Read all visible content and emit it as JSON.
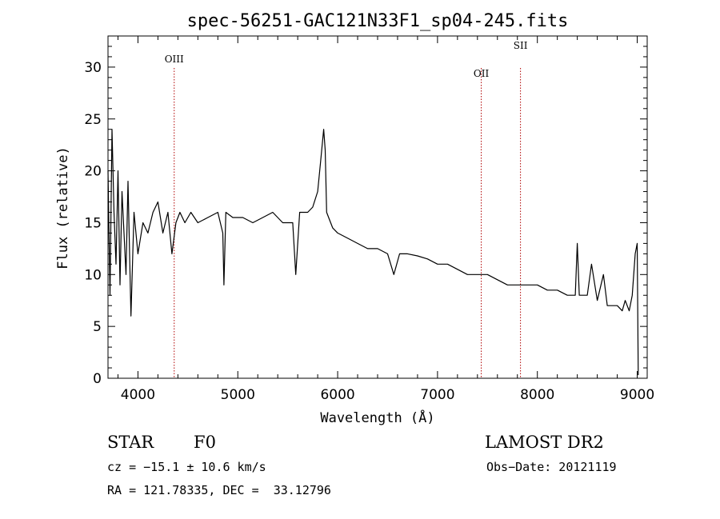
{
  "chart_data": {
    "type": "line",
    "title": "spec-56251-GAC121N33F1_sp04-245.fits",
    "xlabel": "Wavelength (Å)",
    "ylabel": "Flux (relative)",
    "xlim": [
      3700,
      9100
    ],
    "ylim": [
      0,
      33
    ],
    "xticks": [
      4000,
      5000,
      6000,
      7000,
      8000,
      9000
    ],
    "yticks": [
      0,
      5,
      10,
      15,
      20,
      25,
      30
    ],
    "grid": false,
    "series": [
      {
        "x": [
          3700,
          3720,
          3740,
          3760,
          3780,
          3800,
          3820,
          3840,
          3860,
          3880,
          3900,
          3930,
          3960,
          4000,
          4050,
          4100,
          4150,
          4200,
          4250,
          4300,
          4340,
          4380,
          4420,
          4470,
          4530,
          4600,
          4700,
          4800,
          4850,
          4861,
          4880,
          4950,
          5050,
          5150,
          5250,
          5350,
          5450,
          5550,
          5580,
          5620,
          5700,
          5750,
          5800,
          5830,
          5860,
          5875,
          5890,
          5910,
          5950,
          6000,
          6100,
          6200,
          6300,
          6400,
          6500,
          6563,
          6620,
          6700,
          6800,
          6900,
          7000,
          7100,
          7200,
          7300,
          7400,
          7500,
          7600,
          7700,
          7800,
          7900,
          8000,
          8100,
          8200,
          8300,
          8380,
          8400,
          8420,
          8500,
          8542,
          8600,
          8662,
          8700,
          8750,
          8800,
          8850,
          8880,
          8920,
          8950,
          8980,
          9000,
          9010
        ],
        "y": [
          20,
          8,
          24,
          16,
          11,
          20,
          9,
          18,
          14,
          10,
          19,
          6,
          16,
          12,
          15,
          14,
          16,
          17,
          14,
          16,
          12,
          15,
          16,
          15,
          16,
          15,
          15.5,
          16,
          14,
          9,
          16,
          15.5,
          15.5,
          15,
          15.5,
          16,
          15,
          15,
          10,
          16,
          16,
          16.5,
          18,
          21,
          24,
          22,
          16,
          15.5,
          14.5,
          14,
          13.5,
          13,
          12.5,
          12.5,
          12,
          10,
          12,
          12,
          11.8,
          11.5,
          11,
          11,
          10.5,
          10,
          10,
          10,
          9.5,
          9,
          9,
          9,
          9,
          8.5,
          8.5,
          8,
          8,
          13,
          8,
          8,
          11,
          7.5,
          10,
          7,
          7,
          7,
          6.5,
          7.5,
          6.5,
          8,
          12,
          13,
          0.3
        ]
      }
    ],
    "annotations": [
      {
        "label": "OIII",
        "x": 4363
      },
      {
        "label": "OII",
        "x": 7438
      },
      {
        "label": "SII",
        "x": 7831
      }
    ]
  },
  "info": {
    "obj_type": "STAR",
    "subclass": "F0",
    "survey": "LAMOST DR2",
    "cz": "cz = −15.1 ± 10.6 km/s",
    "obs_date": "Obs−Date: 20121119",
    "radec": "RA = 121.78335, DEC =  33.12796"
  },
  "colors": {
    "line": "#000000",
    "annotation": "#b00000"
  }
}
